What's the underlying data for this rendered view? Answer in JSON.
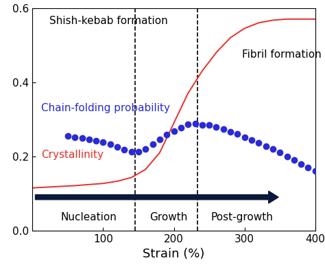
{
  "chart_data": {
    "type": "line",
    "x_label": "Strain (%)",
    "xlim": [
      0,
      400
    ],
    "xticks": [
      100,
      200,
      300,
      400
    ],
    "ylim": [
      0.0,
      0.6
    ],
    "yticks": [
      0.0,
      0.2,
      0.4,
      0.6
    ],
    "grid": false,
    "annotations": [
      "Shish-kebab formation",
      "Fibril formation"
    ],
    "phases": [
      "Nucleation",
      "Growth",
      "Post-growth"
    ],
    "phase_boundaries": [
      145,
      233
    ],
    "series": [
      {
        "name": "Chain-folding probability",
        "color": "#2a2ad6",
        "type": "scatter",
        "marker": "o",
        "line_style": "none",
        "x": [
          50,
          60,
          70,
          80,
          90,
          100,
          110,
          120,
          130,
          140,
          150,
          160,
          170,
          180,
          190,
          200,
          210,
          220,
          230,
          240,
          250,
          260,
          270,
          280,
          290,
          300,
          310,
          320,
          330,
          340,
          350,
          360,
          370,
          380,
          390,
          400
        ],
        "values": [
          0.255,
          0.252,
          0.249,
          0.246,
          0.242,
          0.238,
          0.232,
          0.225,
          0.218,
          0.212,
          0.212,
          0.22,
          0.232,
          0.245,
          0.258,
          0.268,
          0.278,
          0.287,
          0.288,
          0.285,
          0.285,
          0.28,
          0.274,
          0.267,
          0.26,
          0.252,
          0.244,
          0.236,
          0.228,
          0.219,
          0.21,
          0.2,
          0.19,
          0.18,
          0.17,
          0.16
        ]
      },
      {
        "name": "Crystallinity",
        "color": "#e8302a",
        "type": "line",
        "marker": "none",
        "line_style": "solid",
        "x": [
          0,
          20,
          40,
          60,
          80,
          100,
          120,
          140,
          160,
          180,
          200,
          220,
          240,
          260,
          280,
          300,
          320,
          340,
          360,
          380,
          400
        ],
        "values": [
          0.115,
          0.117,
          0.119,
          0.121,
          0.124,
          0.127,
          0.133,
          0.143,
          0.165,
          0.21,
          0.29,
          0.37,
          0.43,
          0.48,
          0.52,
          0.545,
          0.56,
          0.567,
          0.57,
          0.57,
          0.57
        ]
      }
    ]
  }
}
